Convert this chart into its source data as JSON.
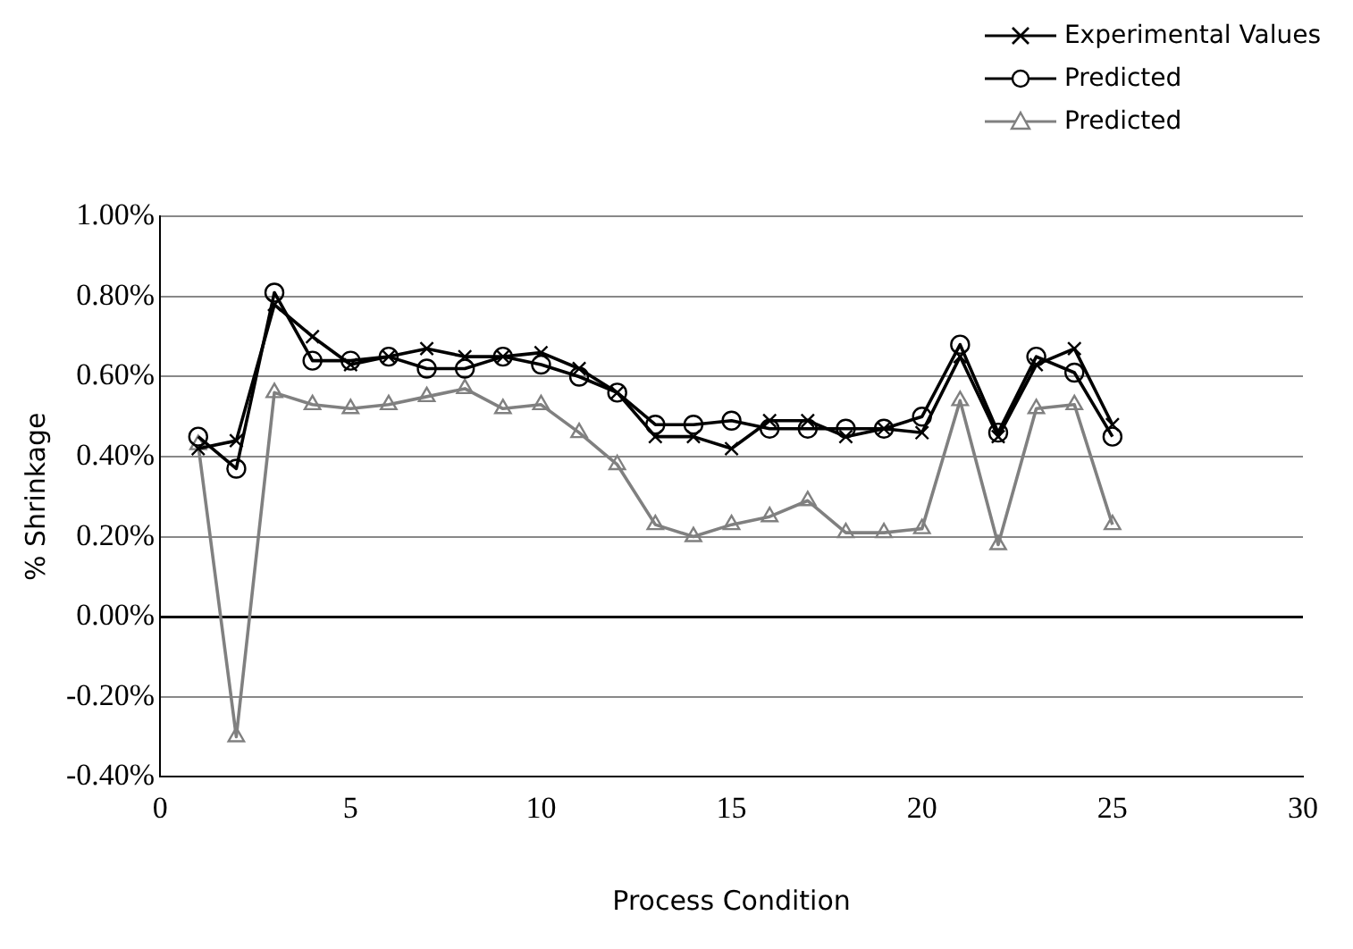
{
  "chart_data": {
    "type": "line",
    "xlabel": "Process Condition",
    "ylabel": "% Shrinkage",
    "grid": "y",
    "legend": "top right",
    "x": [
      1,
      2,
      3,
      4,
      5,
      6,
      7,
      8,
      9,
      10,
      11,
      12,
      13,
      14,
      15,
      16,
      17,
      18,
      19,
      20,
      21,
      22,
      23,
      24,
      25
    ],
    "xlim": [
      0,
      30
    ],
    "xticks": [
      0,
      5,
      10,
      15,
      20,
      25,
      30
    ],
    "ylim": [
      -0.4,
      1.0
    ],
    "yticks": [
      {
        "value": -0.4,
        "label": "-0.40%"
      },
      {
        "value": -0.2,
        "label": "-0.20%"
      },
      {
        "value": 0,
        "label": "0.00%"
      },
      {
        "value": 0.2,
        "label": "0.20%"
      },
      {
        "value": 0.4,
        "label": "0.40%"
      },
      {
        "value": 0.6,
        "label": "0.60%"
      },
      {
        "value": 0.8,
        "label": "0.80%"
      },
      {
        "value": 1.0,
        "label": "1.00%"
      }
    ],
    "series": [
      {
        "name": "Experimental Values",
        "color": "#000000",
        "marker": "cross",
        "values": [
          0.42,
          0.44,
          0.78,
          0.7,
          0.63,
          0.65,
          0.67,
          0.65,
          0.65,
          0.66,
          0.62,
          0.56,
          0.45,
          0.45,
          0.42,
          0.49,
          0.49,
          0.45,
          0.47,
          0.46,
          0.65,
          0.45,
          0.63,
          0.67,
          0.48
        ]
      },
      {
        "name": "Predicted",
        "color": "#000000",
        "marker": "circle",
        "values": [
          0.45,
          0.37,
          0.81,
          0.64,
          0.64,
          0.65,
          0.62,
          0.62,
          0.65,
          0.63,
          0.6,
          0.56,
          0.48,
          0.48,
          0.49,
          0.47,
          0.47,
          0.47,
          0.47,
          0.5,
          0.68,
          0.46,
          0.65,
          0.61,
          0.45
        ]
      },
      {
        "name": "Predicted",
        "color": "#808080",
        "marker": "triangle",
        "values": [
          0.43,
          -0.3,
          0.56,
          0.53,
          0.52,
          0.53,
          0.55,
          0.57,
          0.52,
          0.53,
          0.46,
          0.38,
          0.23,
          0.2,
          0.23,
          0.25,
          0.29,
          0.21,
          0.21,
          0.22,
          0.54,
          0.18,
          0.52,
          0.53,
          0.23
        ]
      }
    ]
  }
}
